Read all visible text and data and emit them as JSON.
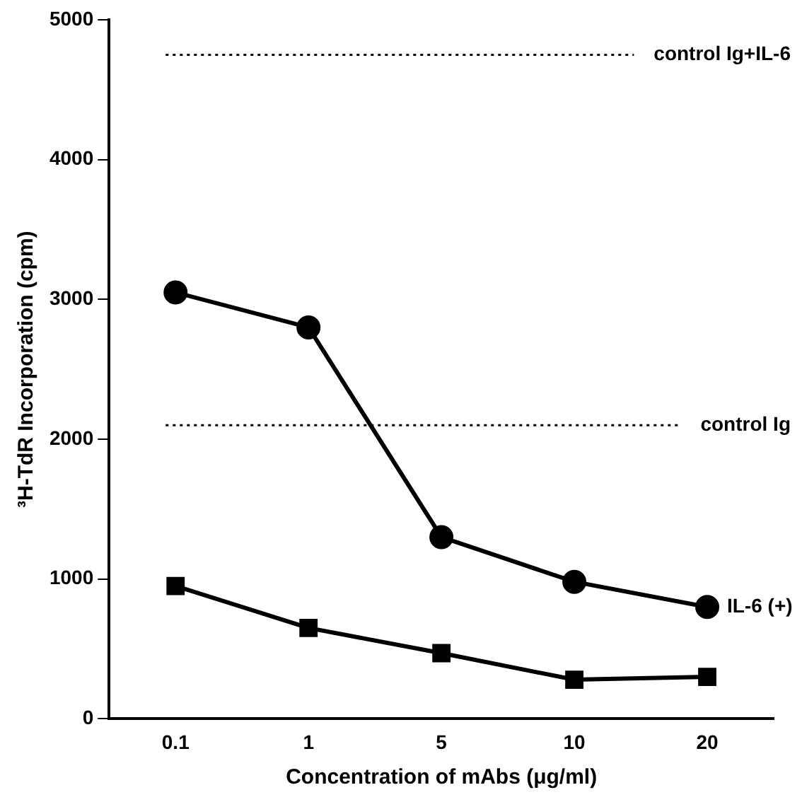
{
  "chart_data": {
    "type": "line",
    "xlabel": "Concentration of mAbs (μg/ml)",
    "ylabel": "³H-TdR Incorporation (cpm)",
    "categories": [
      "0.1",
      "1",
      "5",
      "10",
      "20"
    ],
    "series": [
      {
        "name": "IL-6 (+)",
        "color": "#000000",
        "marker": "circle",
        "values": [
          3050,
          2800,
          1300,
          980,
          800
        ]
      },
      {
        "color": "#000000",
        "marker": "square",
        "values": [
          950,
          650,
          470,
          280,
          300
        ]
      }
    ],
    "ylim": [
      0,
      5000
    ],
    "yticks": [
      0,
      1000,
      2000,
      3000,
      4000,
      5000
    ],
    "grid": false,
    "legend": false,
    "line_style": "solid",
    "ref_lines": [
      {
        "axis": "y",
        "value": 4750,
        "label": "control Ig+IL-6",
        "color": "#000000",
        "line_style": "dotted"
      },
      {
        "axis": "y",
        "value": 2100,
        "label": "control Ig",
        "color": "#000000",
        "line_style": "dotted"
      }
    ]
  }
}
